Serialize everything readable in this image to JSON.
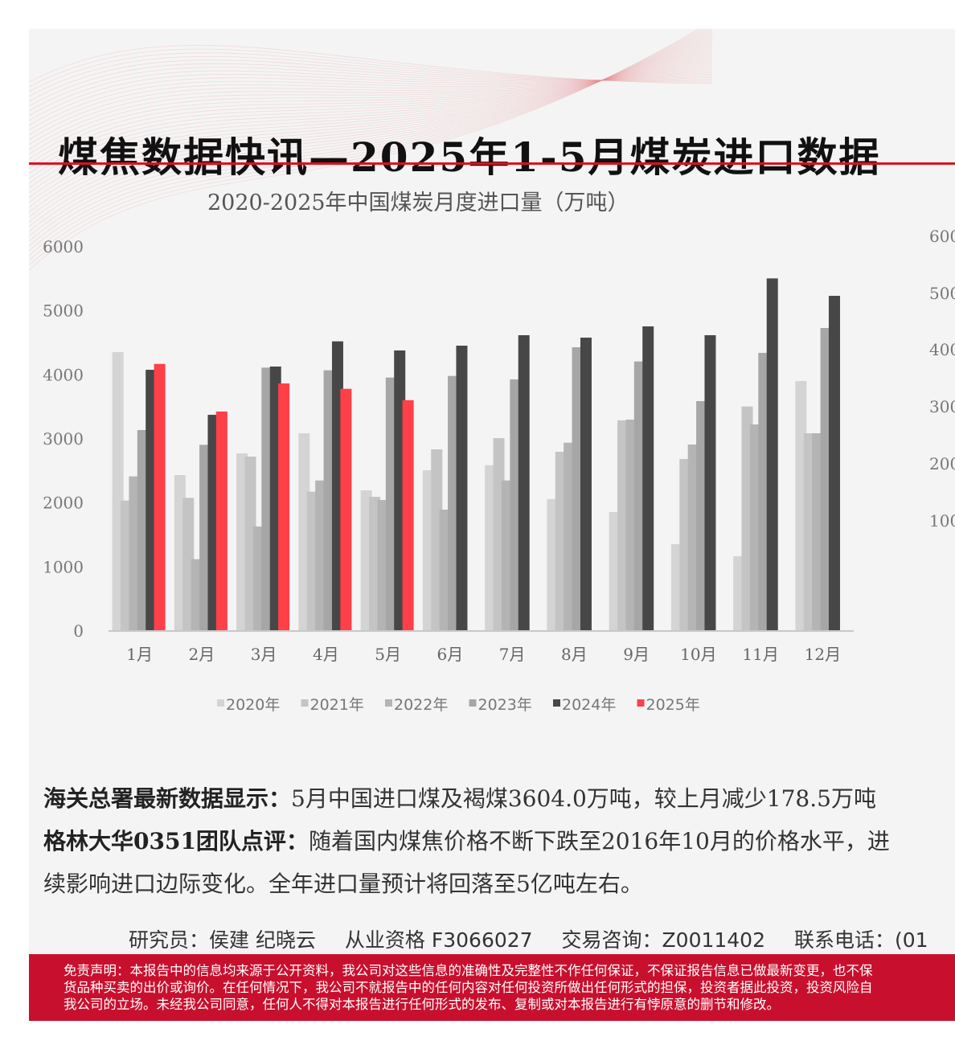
{
  "title": "煤焦数据快讯—2025年1-5月煤炭进口数据",
  "chart_data": {
    "type": "bar",
    "title": "2020-2025年中国煤炭月度进口量（万吨）",
    "xlabel": "",
    "ylabel": "",
    "ylim": [
      0,
      6000
    ],
    "yticks": [
      "0",
      "1000",
      "2000",
      "3000",
      "4000",
      "5000",
      "6000"
    ],
    "categories": [
      "1月",
      "2月",
      "3月",
      "4月",
      "5月",
      "6月",
      "7月",
      "8月",
      "9月",
      "10月",
      "11月",
      "12月"
    ],
    "legend_position": "bottom",
    "series": [
      {
        "name": "2020年",
        "color": "#d4d4d4",
        "values": [
          4355,
          2435,
          2774,
          3088,
          2197,
          2510,
          2590,
          2059,
          1858,
          1356,
          1167,
          3904
        ]
      },
      {
        "name": "2021年",
        "color": "#c4c4c4",
        "values": [
          2037,
          2080,
          2724,
          2176,
          2096,
          2837,
          3012,
          2799,
          3289,
          2686,
          3506,
          3088
        ]
      },
      {
        "name": "2022年",
        "color": "#b4b4b4",
        "values": [
          2414,
          1121,
          1632,
          2351,
          2046,
          1895,
          2351,
          2941,
          3301,
          2912,
          3226,
          3088
        ]
      },
      {
        "name": "2023年",
        "color": "#a6a6a6",
        "values": [
          3138,
          2908,
          4113,
          4071,
          3958,
          3983,
          3929,
          4431,
          4209,
          3590,
          4343,
          4732
        ]
      },
      {
        "name": "2024年",
        "color": "#474747",
        "values": [
          4079,
          3376,
          4130,
          4523,
          4381,
          4456,
          4619,
          4581,
          4757,
          4619,
          5506,
          5234
        ]
      },
      {
        "name": "2025年",
        "color": "#ff4048",
        "values": [
          4171,
          3427,
          3866,
          3782,
          3604,
          null,
          null,
          null,
          null,
          null,
          null,
          null
        ]
      }
    ]
  },
  "right_chart_ticks": [
    "600",
    "500",
    "400",
    "300",
    "200",
    "100"
  ],
  "body": {
    "l1_bold": "海关总署最新数据显示：",
    "l1": "5月中国进口煤及褐煤3604.0万吨，较上月减少178.5万吨",
    "l2_bold": "格林大华0351团队点评：",
    "l2": "随着国内煤焦价格不断下跌至2016年10月的价格水平，进",
    "l3": "续影响进口边际变化。全年进口量预计将回落至5亿吨左右。"
  },
  "staff": {
    "researcher": "研究员：侯建 纪晓云",
    "license": "从业资格 F3066027",
    "consult": "交易咨询：Z0011402",
    "phone": "联系电话：(01"
  },
  "disclaimer": [
    "免责声明：本报告中的信息均来源于公开资料，我公司对这些信息的准确性及完整性不作任何保证，不保证报告信息已做最新变更，也不保",
    "货品种买卖的出价或询价。在任何情况下，我公司不就报告中的任何内容对任何投资所做出任何形式的担保，投资者据此投资，投资风险自",
    "我公司的立场。未经我公司同意，任何人不得对本报告进行任何形式的发布、复制或对本报告进行有悖原意的删节和修改。"
  ]
}
